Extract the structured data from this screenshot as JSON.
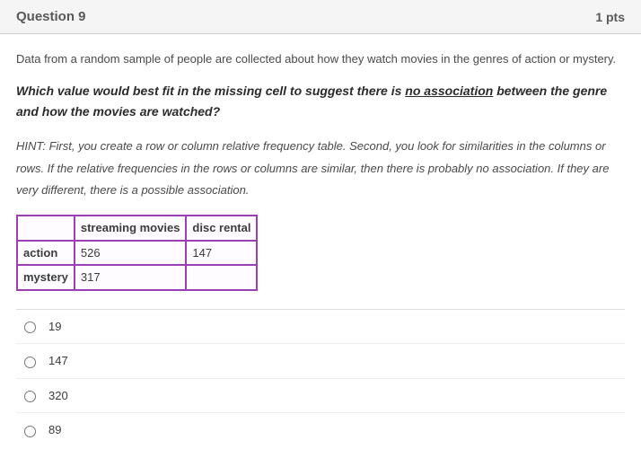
{
  "header": {
    "title": "Question 9",
    "points": "1 pts"
  },
  "body": {
    "intro": "Data from a random sample of people are collected about how they watch movies in the genres of action or mystery.",
    "prompt_pre": "Which value would best fit in the missing cell to suggest there is ",
    "prompt_underlined": "no association",
    "prompt_post": " between the genre and how the movies are watched?",
    "hint": "HINT:  First, you create a row or column relative frequency table. Second, you look for similarities in the columns or rows. If the relative frequencies in the rows or columns are similar, then there is probably no association. If they are very different, there is a possible association."
  },
  "table": {
    "columns": [
      "",
      "streaming movies",
      "disc rental"
    ],
    "rows": [
      [
        "action",
        "526",
        "147"
      ],
      [
        "mystery",
        "317",
        ""
      ]
    ],
    "border_color": "#9b3fb5",
    "cell_bg": "#fefcff"
  },
  "options": [
    {
      "label": "19"
    },
    {
      "label": "147"
    },
    {
      "label": "320"
    },
    {
      "label": "89"
    }
  ]
}
